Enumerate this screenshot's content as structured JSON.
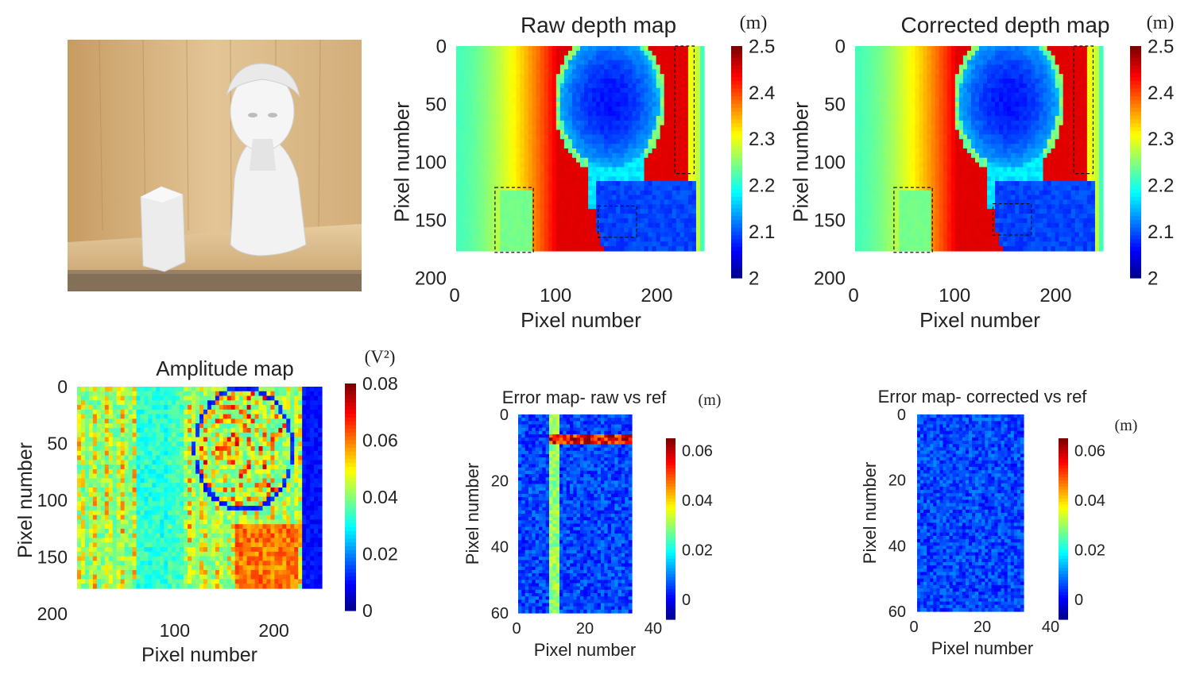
{
  "photo": {
    "alt": "",
    "colors": {
      "wood": "#d9b98a",
      "bust": "#f3f3f3",
      "shadow": "#8a8a8a"
    }
  },
  "chart_data": [
    {
      "id": "raw-depth",
      "type": "heatmap",
      "title": "Raw depth map",
      "xlabel": "Pixel number",
      "ylabel": "Pixel number",
      "xlim": [
        0,
        250
      ],
      "ylim": [
        0,
        200
      ],
      "xticks": [
        0,
        100,
        200
      ],
      "yticks": [
        0,
        50,
        100,
        150,
        200
      ],
      "colorbar": {
        "unit": "(m)",
        "range": [
          2.0,
          2.5
        ],
        "ticks": [
          "2",
          "2.1",
          "2.2",
          "2.3",
          "2.4",
          "2.5"
        ]
      },
      "image_extent": {
        "x": [
          0,
          250
        ],
        "y": [
          0,
          178
        ]
      },
      "regions": [
        {
          "name": "cylinder",
          "x": [
            40,
            78
          ],
          "y": [
            122,
            178
          ]
        },
        {
          "name": "shoulder",
          "x": [
            142,
            180
          ],
          "y": [
            138,
            165
          ]
        },
        {
          "name": "edge",
          "x": [
            218,
            237
          ],
          "y": [
            0,
            110
          ]
        }
      ]
    },
    {
      "id": "corrected-depth",
      "type": "heatmap",
      "title": "Corrected depth map",
      "xlabel": "Pixel number",
      "ylabel": "Pixel number",
      "xlim": [
        0,
        250
      ],
      "ylim": [
        0,
        200
      ],
      "xticks": [
        0,
        100,
        200
      ],
      "yticks": [
        0,
        50,
        100,
        150,
        200
      ],
      "colorbar": {
        "unit": "(m)",
        "range": [
          2.0,
          2.5
        ],
        "ticks": [
          "2",
          "2.1",
          "2.2",
          "2.3",
          "2.4",
          "2.5"
        ]
      },
      "image_extent": {
        "x": [
          0,
          250
        ],
        "y": [
          0,
          178
        ]
      },
      "regions": [
        {
          "name": "cylinder",
          "x": [
            40,
            78
          ],
          "y": [
            122,
            178
          ]
        },
        {
          "name": "shoulder",
          "x": [
            138,
            176
          ],
          "y": [
            136,
            163
          ]
        },
        {
          "name": "edge",
          "x": [
            218,
            237
          ],
          "y": [
            0,
            110
          ]
        }
      ]
    },
    {
      "id": "amplitude",
      "type": "heatmap",
      "title": "Amplitude map",
      "xlabel": "Pixel number",
      "ylabel": "Pixel number",
      "xlim": [
        0,
        250
      ],
      "ylim": [
        0,
        200
      ],
      "xticks": [
        100,
        200
      ],
      "yticks": [
        0,
        50,
        100,
        150,
        200
      ],
      "colorbar": {
        "unit": "(V²)",
        "range": [
          0,
          0.08
        ],
        "ticks": [
          "0",
          "0.02",
          "0.04",
          "0.06",
          "0.08"
        ]
      },
      "image_extent": {
        "x": [
          0,
          250
        ],
        "y": [
          0,
          178
        ]
      }
    },
    {
      "id": "error-raw",
      "type": "heatmap",
      "title": "Error map- raw vs ref",
      "xlabel": "Pixel number",
      "ylabel": "Pixel number",
      "xlim": [
        0,
        40
      ],
      "ylim": [
        0,
        60
      ],
      "xticks": [
        0,
        20,
        40
      ],
      "yticks": [
        0,
        20,
        40,
        60
      ],
      "colorbar": {
        "unit": "(m)",
        "range": [
          -0.008,
          0.065
        ],
        "ticks": [
          "0",
          "0.02",
          "0.04",
          "0.06"
        ]
      },
      "image_extent": {
        "x": [
          0,
          33
        ],
        "y": [
          0,
          60
        ]
      }
    },
    {
      "id": "error-corrected",
      "type": "heatmap",
      "title": "Error map- corrected vs ref",
      "xlabel": "Pixel number",
      "ylabel": "Pixel number",
      "xlim": [
        0,
        40
      ],
      "ylim": [
        0,
        60
      ],
      "xticks": [
        0,
        20,
        40
      ],
      "yticks": [
        0,
        20,
        40,
        60
      ],
      "colorbar": {
        "unit": "(m)",
        "range": [
          -0.008,
          0.065
        ],
        "ticks": [
          "0",
          "0.02",
          "0.04",
          "0.06"
        ]
      },
      "image_extent": {
        "x": [
          0,
          33
        ],
        "y": [
          0,
          60
        ]
      }
    }
  ]
}
